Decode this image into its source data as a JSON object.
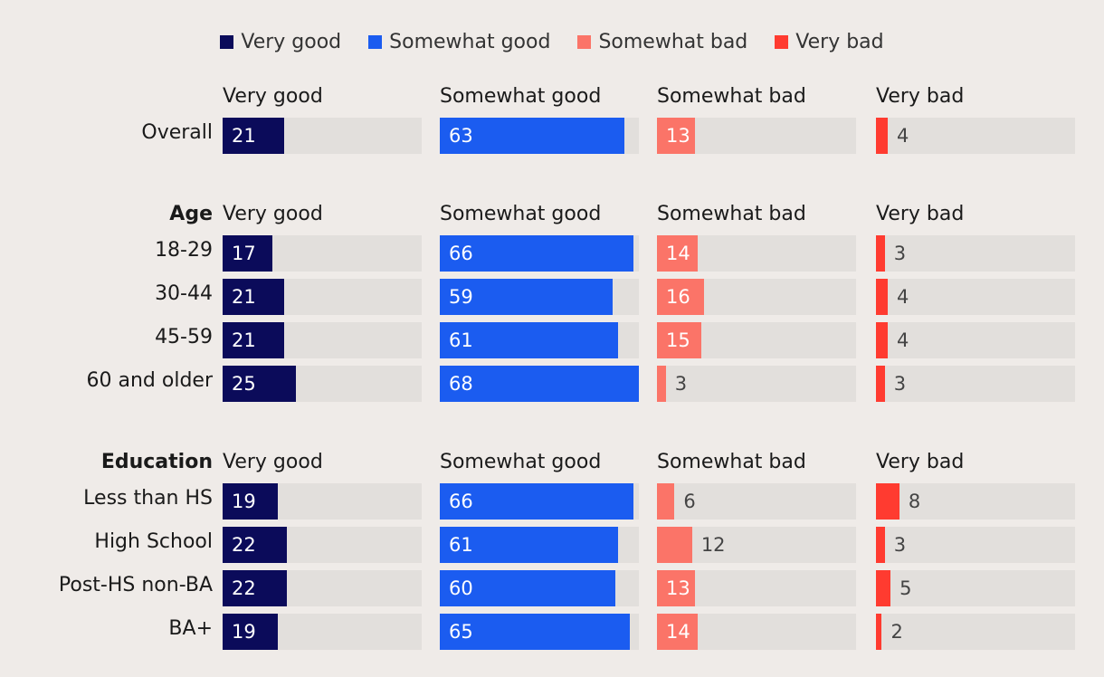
{
  "chart_data": {
    "type": "bar",
    "legend": [
      {
        "name": "Very good",
        "color": "#0b0b5a"
      },
      {
        "name": "Somewhat good",
        "color": "#1b5cf0"
      },
      {
        "name": "Somewhat bad",
        "color": "#fb7468"
      },
      {
        "name": "Very bad",
        "color": "#ff3b30"
      }
    ],
    "column_headers": [
      "Very good",
      "Somewhat good",
      "Somewhat bad",
      "Very bad"
    ],
    "scale_max": 68,
    "groups": [
      {
        "title": "",
        "rows": [
          {
            "label": "Overall",
            "values": [
              21,
              63,
              13,
              4
            ]
          }
        ]
      },
      {
        "title": "Age",
        "rows": [
          {
            "label": "18-29",
            "values": [
              17,
              66,
              14,
              3
            ]
          },
          {
            "label": "30-44",
            "values": [
              21,
              59,
              16,
              4
            ]
          },
          {
            "label": "45-59",
            "values": [
              21,
              61,
              15,
              4
            ]
          },
          {
            "label": "60 and older",
            "values": [
              25,
              68,
              3,
              3
            ]
          }
        ]
      },
      {
        "title": "Education",
        "rows": [
          {
            "label": "Less than HS",
            "values": [
              19,
              66,
              6,
              8
            ]
          },
          {
            "label": "High School",
            "values": [
              22,
              61,
              12,
              3
            ]
          },
          {
            "label": "Post-HS non-BA",
            "values": [
              22,
              60,
              13,
              5
            ]
          },
          {
            "label": "BA+",
            "values": [
              19,
              65,
              14,
              2
            ]
          }
        ]
      }
    ]
  }
}
